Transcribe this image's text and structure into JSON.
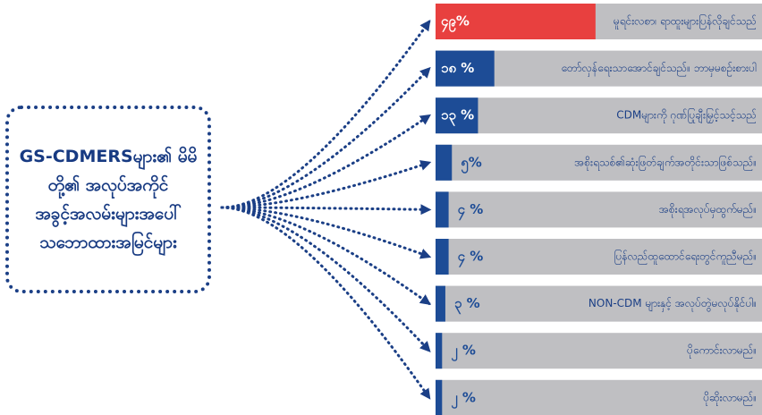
{
  "chart_data": {
    "type": "bar",
    "orientation": "horizontal",
    "title": "GS-CDMERSများ၏ မိမိတို့၏ အလုပ်အကိုင် အခွင့်အလမ်းများအပေါ် သဘောထားအမြင်များ",
    "categories": [
      "မူရင်းလစာ၊ ရာထူးများပြန်လိုချင်သည်",
      "တော်လှန်ရေးသာအောင်ချင်သည်။ ဘာမှမစဉ်းစားပါ",
      "CDMများကို ဂုဏ်ပြုချီးမြှင့်သင့်သည်",
      "အစိုးရသစ်၏ဆုံးဖြတ်ချက်အတိုင်းသာဖြစ်သည်။",
      "အစိုးရအလုပ်မှထွက်မည်။",
      "ပြန်လည်ထူထောင်ရေးတွင်ကူညီမည်။",
      "NON-CDM များနှင့် အလုပ်တွဲမလုပ်နိုင်ပါ။",
      "ပိုကောင်းလာမည်။",
      "ပိုဆိုးလာမည်။"
    ],
    "values": [
      49,
      18,
      13,
      5,
      4,
      4,
      3,
      2,
      2
    ],
    "value_labels": [
      "၄၉%",
      "၁၈ %",
      "၁၃ %",
      "၅%",
      "၄ %",
      "၄ %",
      "၃ %",
      "၂ %",
      "၂ %"
    ],
    "colors": [
      "#e8403f",
      "#1d4c96",
      "#1d4c96",
      "#1d4c96",
      "#1d4c96",
      "#1d4c96",
      "#1d4c96",
      "#1d4c96",
      "#1d4c96"
    ],
    "xlim": [
      0,
      100
    ]
  }
}
